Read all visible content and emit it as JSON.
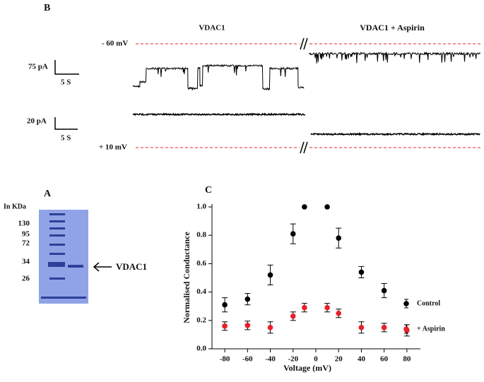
{
  "panel_b": {
    "letter": "B",
    "left_title": "VDAC1",
    "right_title": "VDAC1 + Aspirin",
    "top_voltage": "- 60 mV",
    "bottom_voltage": "+ 10 mV",
    "scale_top": {
      "current": "75 pA",
      "time": "5 S"
    },
    "scale_bottom": {
      "current": "20 pA",
      "time": "5 S"
    }
  },
  "panel_a": {
    "letter": "A",
    "unit": "In KDa",
    "markers": [
      "130",
      "95",
      "72",
      "34",
      "26"
    ],
    "band_label": "VDAC1"
  },
  "chart_data": {
    "type": "scatter",
    "panel_letter": "C",
    "x_label": "Voltage (mV)",
    "y_label": "Normalised Conductance",
    "xlim": [
      -90,
      90
    ],
    "xticks": [
      -80,
      -60,
      -40,
      -20,
      0,
      20,
      40,
      60,
      80
    ],
    "ylim": [
      0,
      1
    ],
    "yticks": [
      {
        "value": 0,
        "label": "0.0"
      },
      0.2,
      0.4,
      0.6,
      0.8,
      {
        "value": 1,
        "label": "1.0"
      }
    ],
    "series": [
      {
        "name": "Control",
        "color": "#000000",
        "x": [
          -80,
          -60,
          -40,
          -20,
          -10,
          10,
          20,
          40,
          60
        ],
        "values": [
          0.31,
          0.35,
          0.52,
          0.81,
          1.0,
          1.0,
          0.78,
          0.54,
          0.41
        ],
        "errors": [
          0.05,
          0.04,
          0.07,
          0.07,
          null,
          null,
          0.07,
          0.04,
          0.05
        ]
      },
      {
        "name": "+ Aspirin",
        "color": "#e8202a",
        "x": [
          -80,
          -60,
          -40,
          -20,
          -10,
          10,
          20,
          40,
          60,
          80
        ],
        "values": [
          0.16,
          0.165,
          0.15,
          0.23,
          0.29,
          0.29,
          0.25,
          0.15,
          0.15,
          0.13
        ],
        "errors": [
          0.03,
          0.03,
          0.04,
          0.03,
          0.03,
          0.03,
          0.03,
          0.04,
          0.03,
          0.04
        ]
      }
    ]
  }
}
